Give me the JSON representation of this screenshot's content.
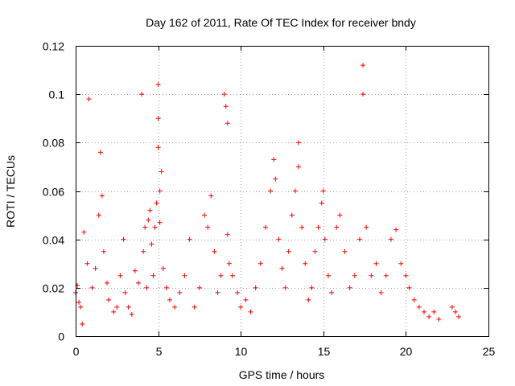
{
  "chart_data": {
    "type": "scatter",
    "title": "Day 162 of 2011, Rate Of TEC Index for receiver bndy",
    "xlabel": "GPS time / hours",
    "ylabel": "ROTI / TECUs",
    "xlim": [
      0,
      25
    ],
    "ylim": [
      0,
      0.12
    ],
    "xticks": [
      "0",
      "5",
      "10",
      "15",
      "20",
      "25"
    ],
    "yticks": [
      "0",
      "0.02",
      "0.04",
      "0.06",
      "0.08",
      "0.1",
      "0.12"
    ],
    "grid": true,
    "legend": "none",
    "marker": "plus",
    "color": "#ff0000",
    "series": [
      {
        "x": [
          0.0,
          0.1,
          0.2,
          0.3,
          0.4,
          0.5,
          0.7,
          0.8,
          1.0,
          1.2,
          1.4,
          1.5,
          1.6,
          1.7,
          1.9,
          2.0,
          2.3,
          2.5,
          2.7,
          2.9,
          3.0,
          3.2,
          3.4,
          3.6,
          3.8,
          4.0,
          4.1,
          4.2,
          4.3,
          4.4,
          4.5,
          4.6,
          4.7,
          4.8,
          4.9,
          5.0,
          5.0,
          5.0,
          5.1,
          5.1,
          5.2,
          5.3,
          5.5,
          5.7,
          6.0,
          6.3,
          6.6,
          6.9,
          7.2,
          7.5,
          7.8,
          8.0,
          8.2,
          8.4,
          8.6,
          8.8,
          9.0,
          9.1,
          9.2,
          9.2,
          9.3,
          9.5,
          9.8,
          10.0,
          10.3,
          10.6,
          10.9,
          11.2,
          11.5,
          11.8,
          12.0,
          12.1,
          12.3,
          12.5,
          12.7,
          12.9,
          13.1,
          13.3,
          13.5,
          13.5,
          13.7,
          13.9,
          14.1,
          14.3,
          14.5,
          14.7,
          14.9,
          15.0,
          15.1,
          15.3,
          15.5,
          15.8,
          16.0,
          16.3,
          16.6,
          16.9,
          17.2,
          17.4,
          17.4,
          17.6,
          17.9,
          18.2,
          18.5,
          18.8,
          19.1,
          19.4,
          19.7,
          20.0,
          20.2,
          20.5,
          20.8,
          21.1,
          21.4,
          21.7,
          22.0,
          22.8,
          23.0,
          23.2
        ],
        "y": [
          0.018,
          0.021,
          0.014,
          0.012,
          0.005,
          0.043,
          0.03,
          0.098,
          0.02,
          0.028,
          0.05,
          0.076,
          0.058,
          0.035,
          0.022,
          0.015,
          0.01,
          0.012,
          0.025,
          0.04,
          0.018,
          0.012,
          0.009,
          0.027,
          0.022,
          0.1,
          0.035,
          0.045,
          0.02,
          0.048,
          0.052,
          0.038,
          0.025,
          0.045,
          0.055,
          0.104,
          0.09,
          0.078,
          0.06,
          0.047,
          0.068,
          0.028,
          0.02,
          0.015,
          0.012,
          0.018,
          0.025,
          0.04,
          0.012,
          0.02,
          0.05,
          0.045,
          0.058,
          0.035,
          0.018,
          0.025,
          0.1,
          0.095,
          0.088,
          0.042,
          0.03,
          0.025,
          0.018,
          0.012,
          0.015,
          0.01,
          0.02,
          0.03,
          0.045,
          0.06,
          0.073,
          0.065,
          0.04,
          0.028,
          0.02,
          0.035,
          0.05,
          0.06,
          0.08,
          0.07,
          0.045,
          0.03,
          0.015,
          0.02,
          0.035,
          0.045,
          0.055,
          0.06,
          0.04,
          0.025,
          0.018,
          0.045,
          0.05,
          0.035,
          0.02,
          0.025,
          0.04,
          0.112,
          0.1,
          0.045,
          0.025,
          0.03,
          0.018,
          0.025,
          0.04,
          0.044,
          0.03,
          0.025,
          0.02,
          0.015,
          0.012,
          0.01,
          0.008,
          0.01,
          0.007,
          0.012,
          0.01,
          0.008
        ]
      }
    ]
  }
}
